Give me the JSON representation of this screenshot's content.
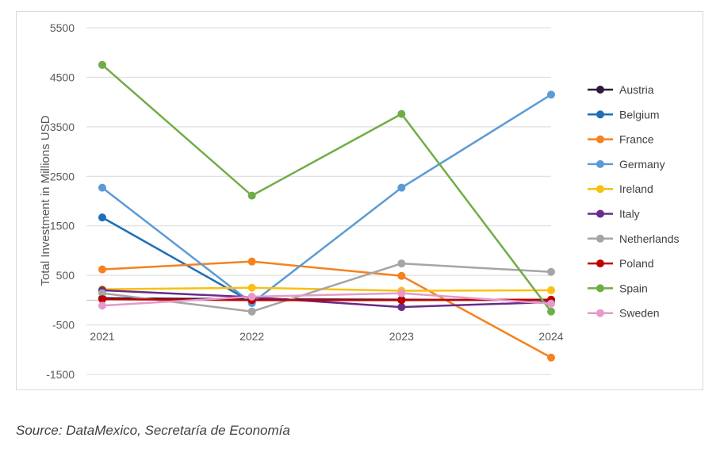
{
  "chart_data": {
    "type": "line",
    "title": "",
    "xlabel": "",
    "ylabel": "Total Investment in Millions USD",
    "categories": [
      "2021",
      "2022",
      "2023",
      "2024"
    ],
    "ylim": [
      -1500,
      5500
    ],
    "yticks": [
      5500,
      4500,
      3500,
      2500,
      1500,
      500,
      -500,
      -1500
    ],
    "grid": true,
    "legend": "right",
    "series": [
      {
        "name": "Austria",
        "color": "#2e1a3f",
        "values": [
          40,
          20,
          10,
          0
        ]
      },
      {
        "name": "Belgium",
        "color": "#1f6fb4",
        "values": [
          1670,
          -40,
          null,
          null
        ]
      },
      {
        "name": "France",
        "color": "#f5821f",
        "values": [
          620,
          780,
          490,
          -1160
        ]
      },
      {
        "name": "Germany",
        "color": "#5b9bd5",
        "values": [
          2270,
          -60,
          2270,
          4150
        ]
      },
      {
        "name": "Ireland",
        "color": "#f9c012",
        "values": [
          220,
          250,
          190,
          200
        ]
      },
      {
        "name": "Italy",
        "color": "#6a2a8a",
        "values": [
          200,
          60,
          -140,
          -40
        ]
      },
      {
        "name": "Netherlands",
        "color": "#a5a5a5",
        "values": [
          140,
          -230,
          740,
          570
        ]
      },
      {
        "name": "Poland",
        "color": "#c00000",
        "values": [
          20,
          0,
          0,
          10
        ]
      },
      {
        "name": "Spain",
        "color": "#70ad47",
        "values": [
          4750,
          2110,
          3760,
          -230
        ]
      },
      {
        "name": "Sweden",
        "color": "#e59ac9",
        "values": [
          -110,
          70,
          140,
          -70
        ]
      }
    ]
  },
  "source": "Source: DataMexico, Secretaría de Economía"
}
